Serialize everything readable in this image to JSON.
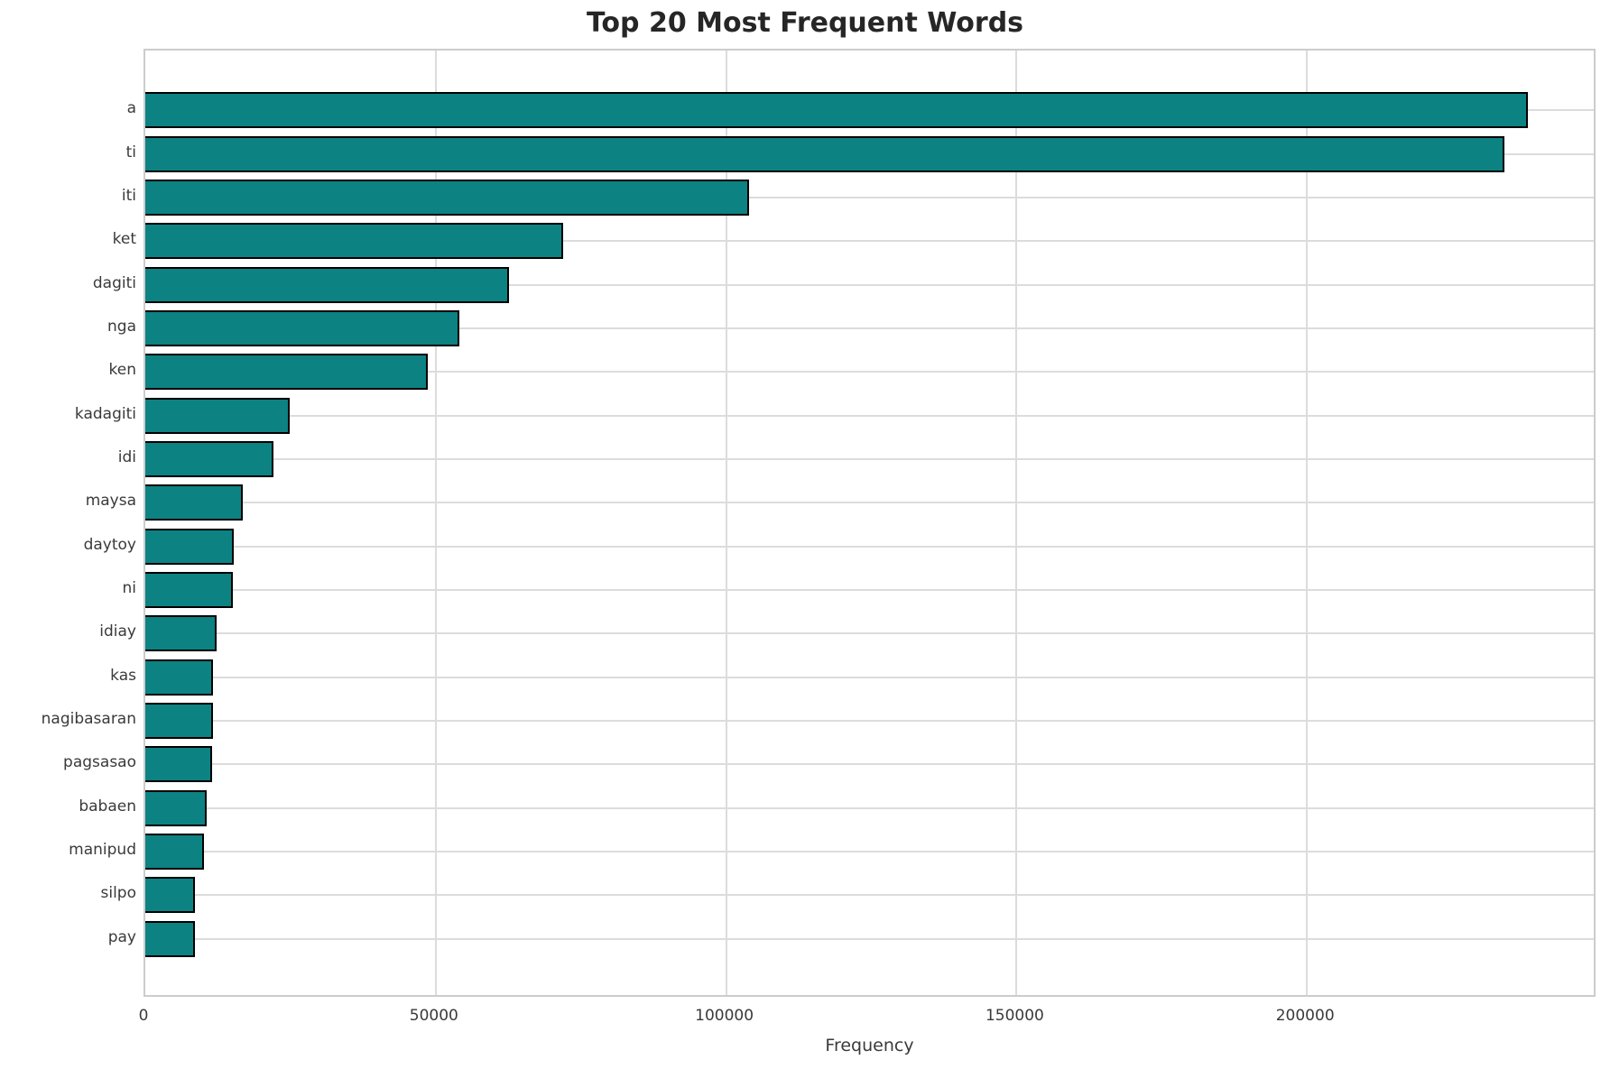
{
  "title": "Top 20 Most Frequent Words",
  "chart_data": {
    "type": "bar",
    "orientation": "horizontal",
    "title": "Top 20 Most Frequent Words",
    "xlabel": "Frequency",
    "ylabel": "",
    "categories": [
      "a",
      "ti",
      "iti",
      "ket",
      "dagiti",
      "nga",
      "ken",
      "kadagiti",
      "idi",
      "maysa",
      "daytoy",
      "ni",
      "idiay",
      "kas",
      "nagibasaran",
      "pagsasao",
      "babaen",
      "manipud",
      "silpo",
      "pay"
    ],
    "values": [
      238000,
      234000,
      104000,
      72000,
      62600,
      54000,
      48700,
      24800,
      22000,
      16800,
      15200,
      15100,
      12300,
      11700,
      11650,
      11500,
      10500,
      10100,
      8600,
      8500
    ],
    "xlim": [
      0,
      250000
    ],
    "xticks": [
      0,
      50000,
      100000,
      150000,
      200000
    ],
    "grid": true,
    "legend": null,
    "bar_color": "#0c8283",
    "bar_edge_color": "#000000",
    "grid_color": "#dcdcdc",
    "spine_color": "#cccccc",
    "tick_text_color": "#3a3a3a",
    "title_color": "#262626",
    "background_color": "#ffffff"
  }
}
